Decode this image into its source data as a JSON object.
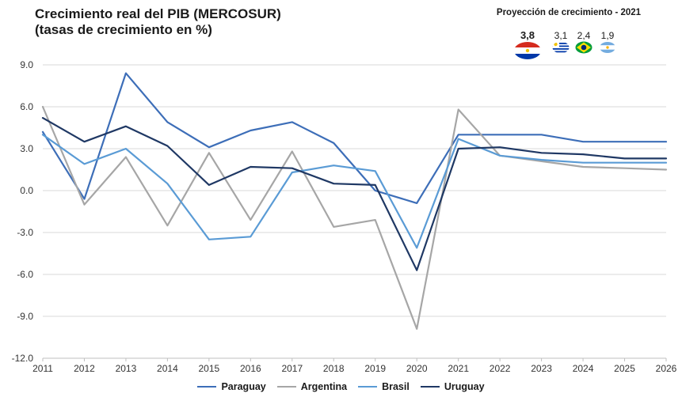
{
  "chart_data": {
    "type": "line",
    "title": [
      "Crecimiento real del PIB (MERCOSUR)",
      "(tasas de crecimiento en %)"
    ],
    "xlabel": "",
    "ylabel": "",
    "ylim": [
      -12,
      9
    ],
    "yticks": [
      9,
      6,
      3,
      0,
      -3,
      -6,
      -9,
      -12
    ],
    "ytick_labels": [
      "9.0",
      "6.0",
      "3.0",
      "0.0",
      "-3.0",
      "-6.0",
      "-9.0",
      "-12.0"
    ],
    "x": [
      "2011",
      "2012",
      "2013",
      "2014",
      "2015",
      "2016",
      "2017",
      "2018",
      "2019",
      "2020",
      "2021",
      "2022",
      "2023",
      "2024",
      "2025",
      "2026"
    ],
    "grid": true,
    "legend_position": "bottom",
    "series": [
      {
        "name": "Paraguay",
        "color": "#3d6eb8",
        "values": [
          4.2,
          -0.6,
          8.4,
          4.9,
          3.1,
          4.3,
          4.9,
          3.4,
          0.0,
          -0.9,
          4.0,
          4.0,
          4.0,
          3.5,
          3.5,
          3.5
        ]
      },
      {
        "name": "Argentina",
        "color": "#a6a6a6",
        "values": [
          6.0,
          -1.0,
          2.4,
          -2.5,
          2.7,
          -2.1,
          2.8,
          -2.6,
          -2.1,
          -9.9,
          5.8,
          2.5,
          2.1,
          1.7,
          1.6,
          1.5
        ]
      },
      {
        "name": "Brasil",
        "color": "#5a9bd5",
        "values": [
          4.0,
          1.9,
          3.0,
          0.5,
          -3.5,
          -3.3,
          1.3,
          1.8,
          1.4,
          -4.1,
          3.7,
          2.5,
          2.2,
          2.0,
          2.0,
          2.0
        ]
      },
      {
        "name": "Uruguay",
        "color": "#1f3864",
        "values": [
          5.2,
          3.5,
          4.6,
          3.2,
          0.4,
          1.7,
          1.6,
          0.5,
          0.4,
          -5.7,
          3.0,
          3.1,
          2.7,
          2.6,
          2.3,
          2.3
        ]
      }
    ]
  },
  "projection": {
    "title": "Proyección de crecimiento - 2021",
    "items": [
      {
        "value": "3,8",
        "flag": "paraguay-flag"
      },
      {
        "value": "3,1",
        "flag": "uruguay-flag"
      },
      {
        "value": "2,4",
        "flag": "brazil-flag"
      },
      {
        "value": "1,9",
        "flag": "argentina-flag"
      }
    ]
  }
}
